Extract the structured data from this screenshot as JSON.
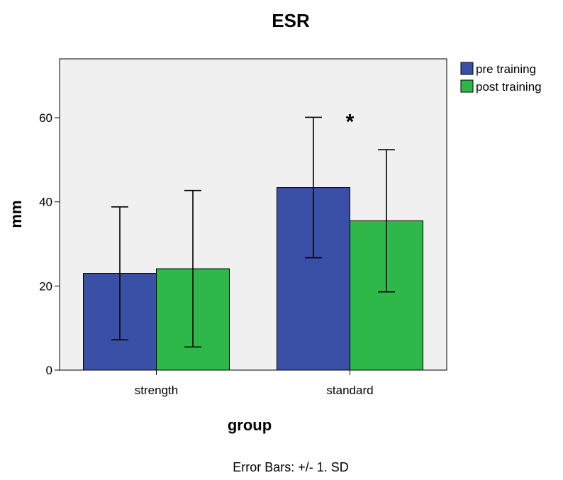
{
  "chart_data": {
    "type": "bar",
    "title": "ESR",
    "xlabel": "group",
    "ylabel": "mm",
    "categories": [
      "strength",
      "standard"
    ],
    "series": [
      {
        "name": "pre training",
        "values": [
          23.0,
          43.4
        ],
        "sd": [
          15.8,
          16.7
        ]
      },
      {
        "name": "post training",
        "values": [
          24.1,
          35.5
        ],
        "sd": [
          18.6,
          16.9
        ]
      }
    ],
    "ylim": [
      0,
      74
    ],
    "yticks": [
      0,
      20,
      40,
      60
    ],
    "grid": false,
    "legend_position": "top-right",
    "annotation": {
      "text": "*",
      "category": "standard"
    },
    "footnote": "Error Bars: +/- 1. SD",
    "colors": {
      "pre training": "#3a4fa6",
      "post training": "#2fb84a",
      "plot_background": "#f0f0f0"
    }
  }
}
